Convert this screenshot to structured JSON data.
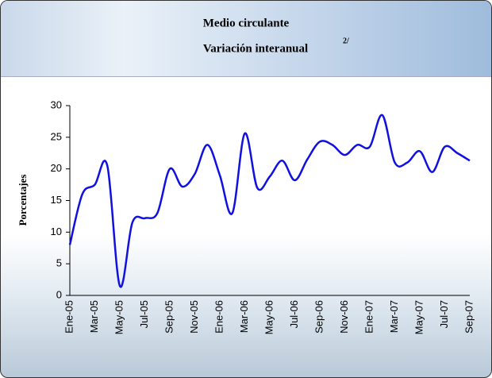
{
  "chart_data": {
    "type": "line",
    "title": "Medio circulante",
    "subtitle": "Variación interanual",
    "subtitle_note": "2/",
    "y_label": "Porcentajes",
    "categories": [
      "Ene-05",
      null,
      "Mar-05",
      null,
      "May-05",
      null,
      "Jul-05",
      null,
      "Sep-05",
      null,
      "Nov-05",
      null,
      "Ene-06",
      null,
      "Mar-06",
      null,
      "May-06",
      null,
      "Jul-06",
      null,
      "Sep-06",
      null,
      "Nov-06",
      null,
      "Ene-07",
      null,
      "Mar-07",
      null,
      "May-07",
      null,
      "Jul-07",
      null,
      "Sep-07"
    ],
    "values": [
      8,
      16,
      17.5,
      20.5,
      1.5,
      11.5,
      12.2,
      13,
      20,
      17.2,
      19.2,
      23.8,
      19,
      13,
      25.6,
      17,
      18.8,
      21.3,
      18.2,
      21.5,
      24.3,
      23.8,
      22.2,
      23.8,
      23.5,
      28.5,
      21,
      21,
      22.8,
      19.5,
      23.5,
      22.5,
      21.3
    ],
    "color": "#1010e0",
    "smooth": true,
    "ylim": [
      0,
      30
    ],
    "yticks": [
      0,
      5,
      10,
      15,
      20,
      25,
      30
    ],
    "grid": false
  }
}
